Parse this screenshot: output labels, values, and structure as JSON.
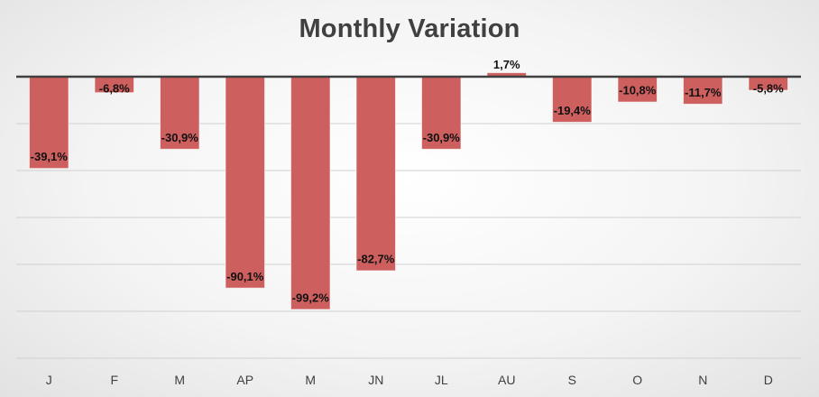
{
  "chart_data": {
    "type": "bar",
    "title": "Monthly Variation",
    "xlabel": "",
    "ylabel": "",
    "categories": [
      "J",
      "F",
      "M",
      "AP",
      "M",
      "JN",
      "JL",
      "AU",
      "S",
      "O",
      "N",
      "D"
    ],
    "values": [
      -39.1,
      -6.8,
      -30.9,
      -90.1,
      -99.2,
      -82.7,
      -30.9,
      1.7,
      -19.4,
      -10.8,
      -11.7,
      -5.8
    ],
    "data_labels": [
      "-39,1%",
      "-6,8%",
      "-30,9%",
      "-90,1%",
      "-99,2%",
      "-82,7%",
      "-30,9%",
      "1,7%",
      "-19,4%",
      "-10,8%",
      "-11,7%",
      "-5,8%"
    ],
    "ylim": [
      -120,
      20
    ],
    "grid": true,
    "legend": "none",
    "colors": {
      "bar": "#cd5f5f",
      "axis": "#404040",
      "grid": "#d0d0d0",
      "title": "#404040"
    }
  }
}
